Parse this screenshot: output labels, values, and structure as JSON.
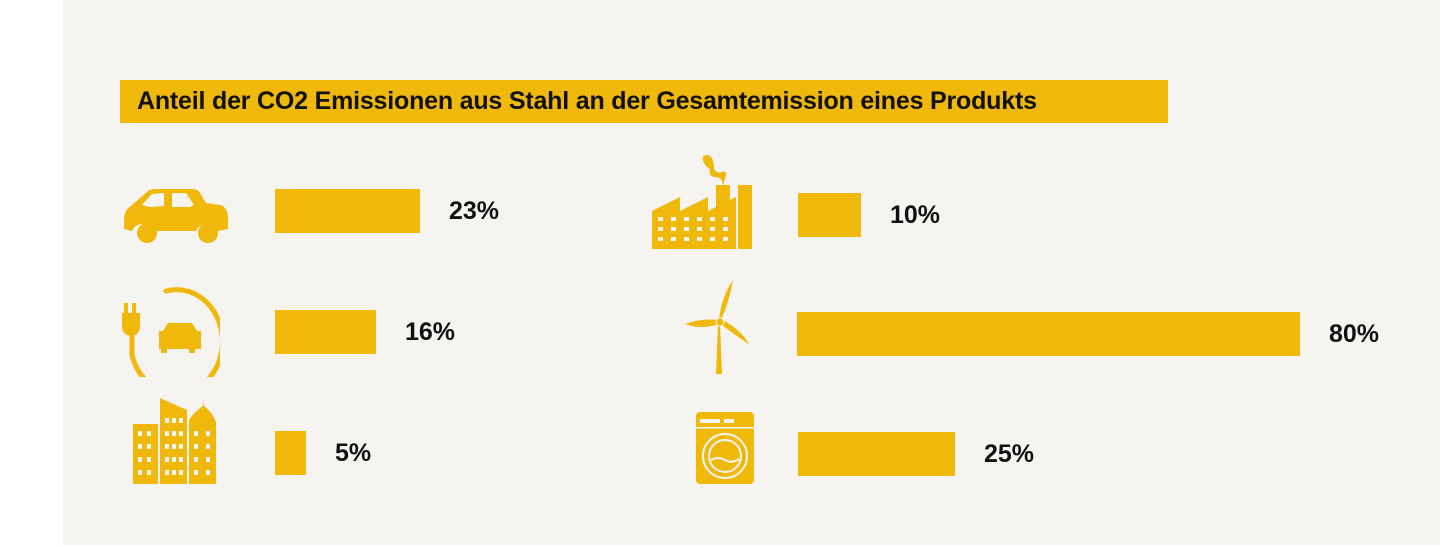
{
  "chart_data": {
    "type": "bar",
    "title": "Anteil der CO2 Emissionen aus Stahl an der Gesamtemission eines Produkts",
    "categories": [
      "car-icon",
      "electric-car-icon",
      "buildings-icon",
      "factory-icon",
      "wind-turbine-icon",
      "washing-machine-icon"
    ],
    "values": [
      23,
      16,
      5,
      10,
      80,
      25
    ],
    "labels": [
      "23%",
      "16%",
      "5%",
      "10%",
      "80%",
      "25%"
    ],
    "unit": "%",
    "orientation": "horizontal",
    "bar_color": "#f0b80a",
    "grid": false
  }
}
